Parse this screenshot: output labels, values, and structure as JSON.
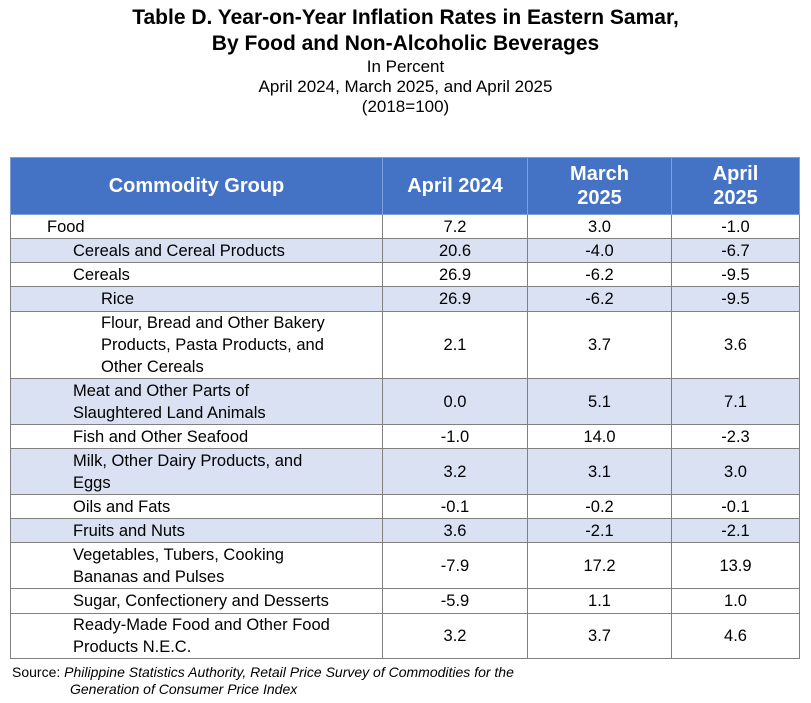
{
  "title": {
    "line1": "Table D. Year-on-Year Inflation Rates in Eastern Samar,",
    "line2": "By Food and Non-Alcoholic Beverages",
    "unit": "In Percent",
    "periods": "April 2024, March 2025, and April 2025",
    "base": "(2018=100)"
  },
  "table": {
    "headers": {
      "commodity": "Commodity Group",
      "col1": "April 2024",
      "col2_line1": "March",
      "col2_line2": "2025",
      "col3_line1": "April",
      "col3_line2": "2025"
    },
    "rows": [
      {
        "label": "Food",
        "a2024": "7.2",
        "m2025": "3.0",
        "a2025": "-1.0"
      },
      {
        "label": "Cereals and Cereal Products",
        "a2024": "20.6",
        "m2025": "-4.0",
        "a2025": "-6.7"
      },
      {
        "label": "Cereals",
        "a2024": "26.9",
        "m2025": "-6.2",
        "a2025": "-9.5"
      },
      {
        "label": "Rice",
        "a2024": "26.9",
        "m2025": "-6.2",
        "a2025": "-9.5"
      },
      {
        "label_lines": [
          "Flour, Bread and Other Bakery",
          "Products, Pasta Products, and",
          "Other Cereals"
        ],
        "a2024": "2.1",
        "m2025": "3.7",
        "a2025": "3.6"
      },
      {
        "label_lines": [
          "Meat and Other Parts of",
          "Slaughtered Land Animals"
        ],
        "a2024": "0.0",
        "m2025": "5.1",
        "a2025": "7.1"
      },
      {
        "label": "Fish and Other Seafood",
        "a2024": "-1.0",
        "m2025": "14.0",
        "a2025": "-2.3"
      },
      {
        "label_lines": [
          "Milk, Other Dairy Products, and",
          "Eggs"
        ],
        "a2024": "3.2",
        "m2025": "3.1",
        "a2025": "3.0"
      },
      {
        "label": "Oils and Fats",
        "a2024": "-0.1",
        "m2025": "-0.2",
        "a2025": "-0.1"
      },
      {
        "label": "Fruits and Nuts",
        "a2024": "3.6",
        "m2025": "-2.1",
        "a2025": "-2.1"
      },
      {
        "label_lines": [
          "Vegetables, Tubers, Cooking",
          "Bananas and Pulses"
        ],
        "a2024": "-7.9",
        "m2025": "17.2",
        "a2025": "13.9"
      },
      {
        "label": "Sugar, Confectionery and Desserts",
        "a2024": "-5.9",
        "m2025": "1.1",
        "a2025": "1.0"
      },
      {
        "label_lines": [
          "Ready-Made Food and Other Food",
          "Products N.E.C."
        ],
        "a2024": "3.2",
        "m2025": "3.7",
        "a2025": "4.6"
      }
    ]
  },
  "source": {
    "label": "Source:",
    "line1": "Philippine Statistics Authority, Retail Price Survey of Commodities for the",
    "line2": "Generation of Consumer Price Index"
  },
  "colors": {
    "header_bg": "#4472c4",
    "shade_bg": "#d9e1f2"
  }
}
